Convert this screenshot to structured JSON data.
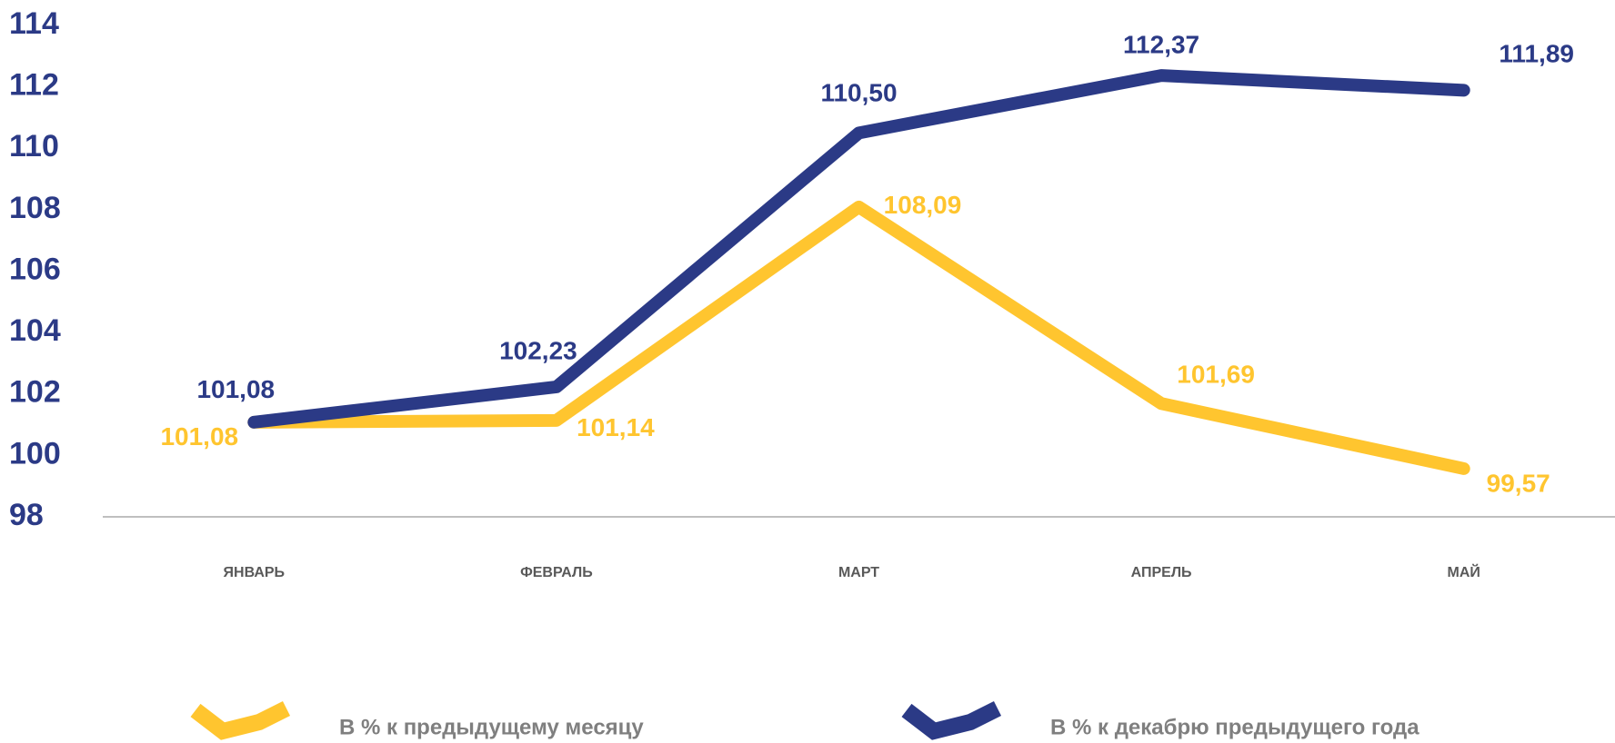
{
  "chart_data": {
    "type": "line",
    "categories": [
      "ЯНВАРЬ",
      "ФЕВРАЛЬ",
      "МАРТ",
      "АПРЕЛЬ",
      "МАЙ"
    ],
    "series": [
      {
        "name": "В % к предыдущему месяцу",
        "color": "#FFC52F",
        "values": [
          101.08,
          101.14,
          108.09,
          101.69,
          99.57
        ],
        "value_labels": [
          "101,08",
          "101,14",
          "108,09",
          "101,69",
          "99,57"
        ]
      },
      {
        "name": "В % к декабрю предыдущего года",
        "color": "#2B3A86",
        "values": [
          101.08,
          102.23,
          110.5,
          112.37,
          111.89
        ],
        "value_labels": [
          "101,08",
          "102,23",
          "110,50",
          "112,37",
          "111,89"
        ]
      }
    ],
    "ylim": [
      98,
      114
    ],
    "yticks": [
      98,
      100,
      102,
      104,
      106,
      108,
      110,
      112,
      114
    ],
    "grid": false
  }
}
